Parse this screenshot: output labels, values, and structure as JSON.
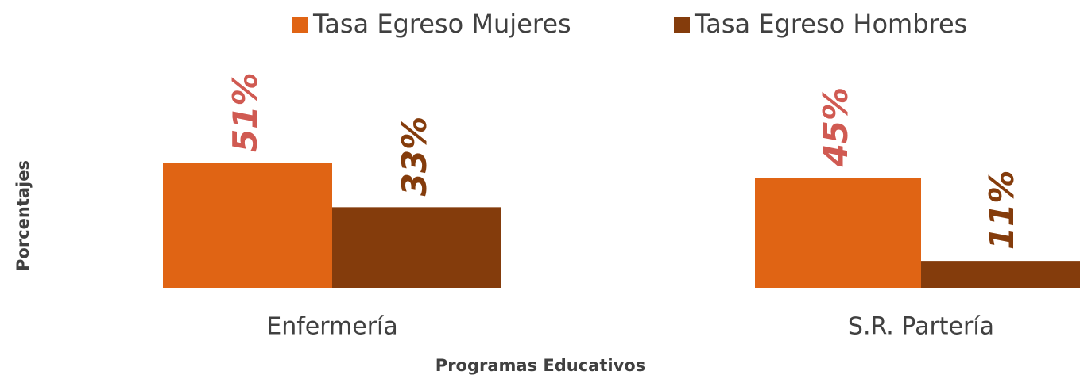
{
  "chart_data": {
    "type": "bar",
    "categories": [
      "Enfermería",
      "S.R. Partería"
    ],
    "series": [
      {
        "name": "Tasa Egreso Mujeres",
        "color": "#e06414",
        "label_color": "#d05a52",
        "values": [
          51,
          45
        ],
        "value_labels": [
          "51%",
          "45%"
        ]
      },
      {
        "name": "Tasa Egreso Hombres",
        "color": "#843c0c",
        "label_color": "#843c0c",
        "values": [
          33,
          11
        ],
        "value_labels": [
          "33%",
          "11%"
        ]
      }
    ],
    "x_label": "Programas Educativos",
    "y_label": "Porcentajes",
    "legend": "top"
  }
}
